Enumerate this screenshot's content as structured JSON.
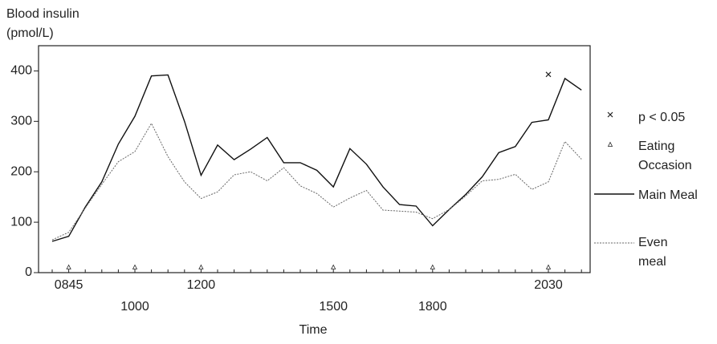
{
  "chart_data": {
    "type": "line",
    "ylabel_lines": [
      "Blood insulin",
      "(pmol/L)"
    ],
    "xlabel": "Time",
    "categories": [
      null,
      "0845",
      null,
      null,
      null,
      "1000",
      null,
      null,
      null,
      "1200",
      null,
      null,
      null,
      null,
      null,
      null,
      null,
      "1500",
      null,
      null,
      null,
      null,
      null,
      "1800",
      null,
      null,
      null,
      null,
      null,
      null,
      "2030",
      null,
      null
    ],
    "series": [
      {
        "name": "Main Meal",
        "color": "#111111",
        "style": "solid",
        "values": [
          62,
          72,
          130,
          180,
          255,
          310,
          390,
          392,
          300,
          193,
          253,
          224,
          245,
          268,
          218,
          218,
          203,
          170,
          246,
          215,
          170,
          135,
          132,
          93,
          125,
          155,
          190,
          238,
          250,
          298,
          303,
          385,
          362
        ]
      },
      {
        "name": "Even meal",
        "color": "#666666",
        "style": "dotted",
        "values": [
          65,
          80,
          128,
          175,
          220,
          240,
          296,
          230,
          180,
          147,
          160,
          194,
          200,
          182,
          208,
          172,
          157,
          130,
          148,
          163,
          124,
          122,
          120,
          107,
          125,
          152,
          182,
          185,
          195,
          165,
          180,
          260,
          225
        ]
      }
    ],
    "eating_occasion_label": "Eating Occasion",
    "eating_occasions": [
      1,
      5,
      9,
      17,
      23,
      30
    ],
    "significance_label": "p < 0.05",
    "significant_points": [
      {
        "index": 30,
        "value": 393
      }
    ],
    "ylim": [
      0,
      450
    ],
    "yticks": [
      0,
      100,
      200,
      300,
      400
    ]
  }
}
